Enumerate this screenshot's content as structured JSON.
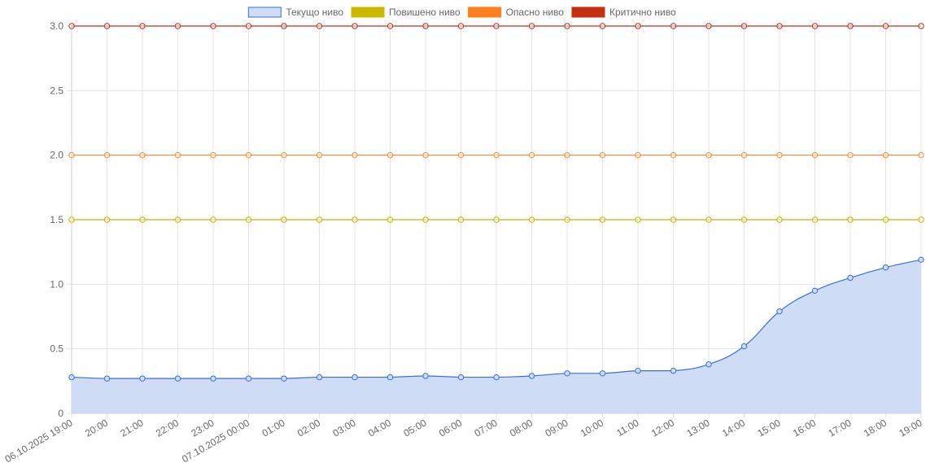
{
  "chart_data": {
    "type": "line",
    "title": "",
    "xlabel": "",
    "ylabel": "",
    "ylim": [
      0,
      3.0
    ],
    "yticks": [
      "0",
      "0.5",
      "1.0",
      "1.5",
      "2.0",
      "2.5",
      "3.0"
    ],
    "ytick_values": [
      0,
      0.5,
      1.0,
      1.5,
      2.0,
      2.5,
      3.0
    ],
    "grid": true,
    "legend_position": "top-center",
    "categories": [
      "06.10.2025 19:00",
      "20:00",
      "21:00",
      "22:00",
      "23:00",
      "07.10.2025 00:00",
      "01:00",
      "02:00",
      "03:00",
      "04:00",
      "05:00",
      "06:00",
      "07:00",
      "08:00",
      "09:00",
      "10:00",
      "11:00",
      "12:00",
      "13:00",
      "14:00",
      "15:00",
      "16:00",
      "17:00",
      "18:00",
      "19:00"
    ],
    "series": [
      {
        "name": "Текущо ниво",
        "color": "#3a6fd0",
        "fill": "#cfdcf6",
        "filled": true,
        "values": [
          0.28,
          0.27,
          0.27,
          0.27,
          0.27,
          0.27,
          0.27,
          0.28,
          0.28,
          0.28,
          0.29,
          0.28,
          0.28,
          0.29,
          0.31,
          0.31,
          0.33,
          0.33,
          0.38,
          0.52,
          0.79,
          0.95,
          1.05,
          1.13,
          1.19
        ]
      },
      {
        "name": "Повишено ниво",
        "color": "#c9b400",
        "fill": "#cdb800",
        "filled": false,
        "values": [
          1.5,
          1.5,
          1.5,
          1.5,
          1.5,
          1.5,
          1.5,
          1.5,
          1.5,
          1.5,
          1.5,
          1.5,
          1.5,
          1.5,
          1.5,
          1.5,
          1.5,
          1.5,
          1.5,
          1.5,
          1.5,
          1.5,
          1.5,
          1.5,
          1.5
        ]
      },
      {
        "name": "Опасно ниво",
        "color": "#f08a30",
        "fill": "#ff7f1e",
        "filled": false,
        "values": [
          2.0,
          2.0,
          2.0,
          2.0,
          2.0,
          2.0,
          2.0,
          2.0,
          2.0,
          2.0,
          2.0,
          2.0,
          2.0,
          2.0,
          2.0,
          2.0,
          2.0,
          2.0,
          2.0,
          2.0,
          2.0,
          2.0,
          2.0,
          2.0,
          2.0
        ]
      },
      {
        "name": "Критично ниво",
        "color": "#c03020",
        "fill": "#c4300f",
        "filled": false,
        "values": [
          3.0,
          3.0,
          3.0,
          3.0,
          3.0,
          3.0,
          3.0,
          3.0,
          3.0,
          3.0,
          3.0,
          3.0,
          3.0,
          3.0,
          3.0,
          3.0,
          3.0,
          3.0,
          3.0,
          3.0,
          3.0,
          3.0,
          3.0,
          3.0,
          3.0
        ]
      }
    ]
  }
}
